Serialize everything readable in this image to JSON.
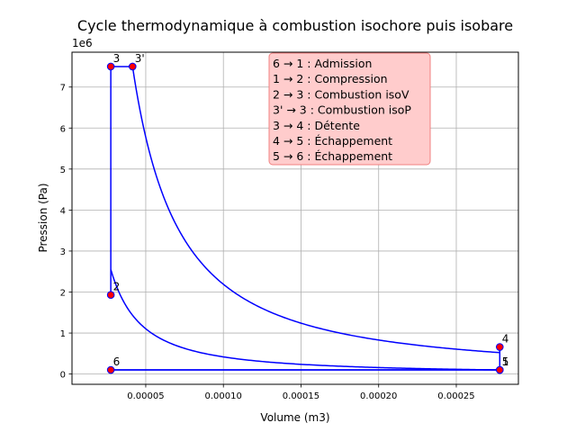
{
  "chart_data": {
    "type": "line",
    "title": "Cycle thermodynamique à combustion isochore puis isobare",
    "xlabel": "Volume (m3)",
    "ylabel": "Pression (Pa)",
    "y_offset_label": "1e6",
    "y_scale": 1000000,
    "xlim": [
      2.5e-06,
      0.00029
    ],
    "ylim": [
      -250000,
      7850000
    ],
    "x_ticks": [
      5e-05,
      0.0001,
      0.00015,
      0.0002,
      0.00025
    ],
    "x_tick_labels": [
      "0.00005",
      "0.00010",
      "0.00015",
      "0.00020",
      "0.00025"
    ],
    "y_ticks": [
      0,
      1000000,
      2000000,
      3000000,
      4000000,
      5000000,
      6000000,
      7000000
    ],
    "y_tick_labels": [
      "0",
      "1",
      "2",
      "3",
      "4",
      "5",
      "6",
      "7"
    ],
    "grid": true,
    "line_color": "#0000ff",
    "marker_color": "#ff0000",
    "marker_edge_color": "#0000ff",
    "gamma": 1.4,
    "points": [
      {
        "label": "1",
        "x": 0.000278,
        "y": 100000
      },
      {
        "label": "2",
        "x": 2.75e-05,
        "y": 1930000
      },
      {
        "label": "3",
        "x": 2.75e-05,
        "y": 7500000
      },
      {
        "label": "3'",
        "x": 4.15e-05,
        "y": 7500000
      },
      {
        "label": "4",
        "x": 0.000278,
        "y": 660000
      },
      {
        "label": "5",
        "x": 0.000278,
        "y": 100000
      },
      {
        "label": "6",
        "x": 2.75e-05,
        "y": 100000
      }
    ],
    "legend_box": {
      "lines": [
        "6 → 1 : Admission",
        "1 → 2 : Compression",
        "2 → 3 : Combustion isoV",
        "3' → 3 : Combustion isoP",
        "3 → 4 : Détente",
        "4 → 5 : Échappement",
        "5 → 6 : Échappement"
      ],
      "facecolor": "#ffcccc",
      "edgecolor": "#f08080"
    }
  }
}
